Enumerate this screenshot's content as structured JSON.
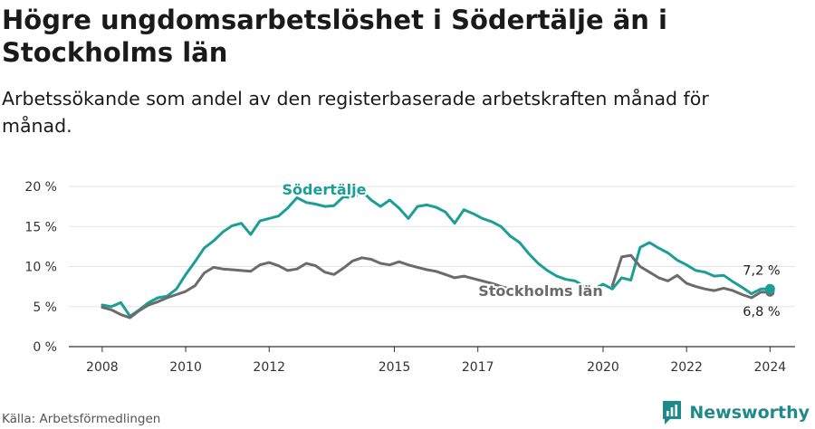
{
  "title": "Högre ungdomsarbetslöshet i Södertälje än i Stockholms län",
  "subtitle": "Arbetssökande som andel av den registerbaserade arbetskraften månad för månad.",
  "source": "Källa: Arbetsförmedlingen",
  "brand": "Newsworthy",
  "colors": {
    "sodertalje": "#1a9e96",
    "stockholm": "#6b6b6b",
    "grid": "#e3e3e3",
    "axis": "#333333",
    "brand": "#1f8a8a"
  },
  "chart_data": {
    "type": "line",
    "x_range": [
      2008.0,
      2024.0
    ],
    "xlim": [
      2007.2,
      2024.6
    ],
    "ylim": [
      0,
      20
    ],
    "y_ticks": [
      0,
      5,
      10,
      15,
      20
    ],
    "y_tick_labels": [
      "0 %",
      "5 %",
      "10 %",
      "15 %",
      "20 %"
    ],
    "x_ticks": [
      2008,
      2010,
      2012,
      2015,
      2017,
      2020,
      2022,
      2024
    ],
    "x_tick_labels": [
      "2008",
      "2010",
      "2012",
      "2015",
      "2017",
      "2020",
      "2022",
      "2024"
    ],
    "series": [
      {
        "name": "Södertälje",
        "label": "Södertälje",
        "end_label": "7,2 %",
        "values": [
          5.2,
          5.0,
          5.5,
          3.8,
          4.6,
          5.5,
          6.1,
          6.3,
          7.2,
          9.0,
          10.6,
          12.3,
          13.2,
          14.3,
          15.1,
          15.4,
          14.0,
          15.7,
          16.0,
          16.3,
          17.3,
          18.6,
          18.0,
          17.8,
          17.5,
          17.6,
          18.7,
          18.6,
          19.4,
          18.3,
          17.5,
          18.3,
          17.3,
          16.0,
          17.5,
          17.7,
          17.4,
          16.8,
          15.4,
          17.1,
          16.6,
          16.0,
          15.6,
          15.0,
          13.8,
          13.0,
          11.6,
          10.4,
          9.5,
          8.8,
          8.4,
          8.2,
          7.5,
          7.2,
          7.8,
          7.2,
          8.6,
          8.3,
          12.4,
          13.0,
          12.3,
          11.7,
          10.8,
          10.2,
          9.5,
          9.3,
          8.8,
          8.9,
          8.1,
          7.4,
          6.6,
          7.2,
          7.2
        ]
      },
      {
        "name": "Stockholms län",
        "label": "Stockholms län",
        "end_label": "6,8 %",
        "values": [
          4.9,
          4.6,
          4.0,
          3.6,
          4.5,
          5.2,
          5.6,
          6.1,
          6.5,
          6.9,
          7.6,
          9.2,
          9.9,
          9.7,
          9.6,
          9.5,
          9.4,
          10.2,
          10.5,
          10.1,
          9.5,
          9.7,
          10.4,
          10.1,
          9.3,
          9.0,
          9.8,
          10.7,
          11.1,
          10.9,
          10.4,
          10.2,
          10.6,
          10.2,
          9.9,
          9.6,
          9.4,
          9.0,
          8.6,
          8.8,
          8.5,
          8.2,
          7.9,
          7.5,
          7.2,
          7.0,
          7.3,
          7.0,
          null,
          null,
          null,
          null,
          null,
          null,
          null,
          7.6,
          11.2,
          11.4,
          10.0,
          9.3,
          8.6,
          8.2,
          8.9,
          7.9,
          7.5,
          7.2,
          7.0,
          7.3,
          7.0,
          6.5,
          6.1,
          6.8,
          6.8
        ]
      }
    ]
  }
}
